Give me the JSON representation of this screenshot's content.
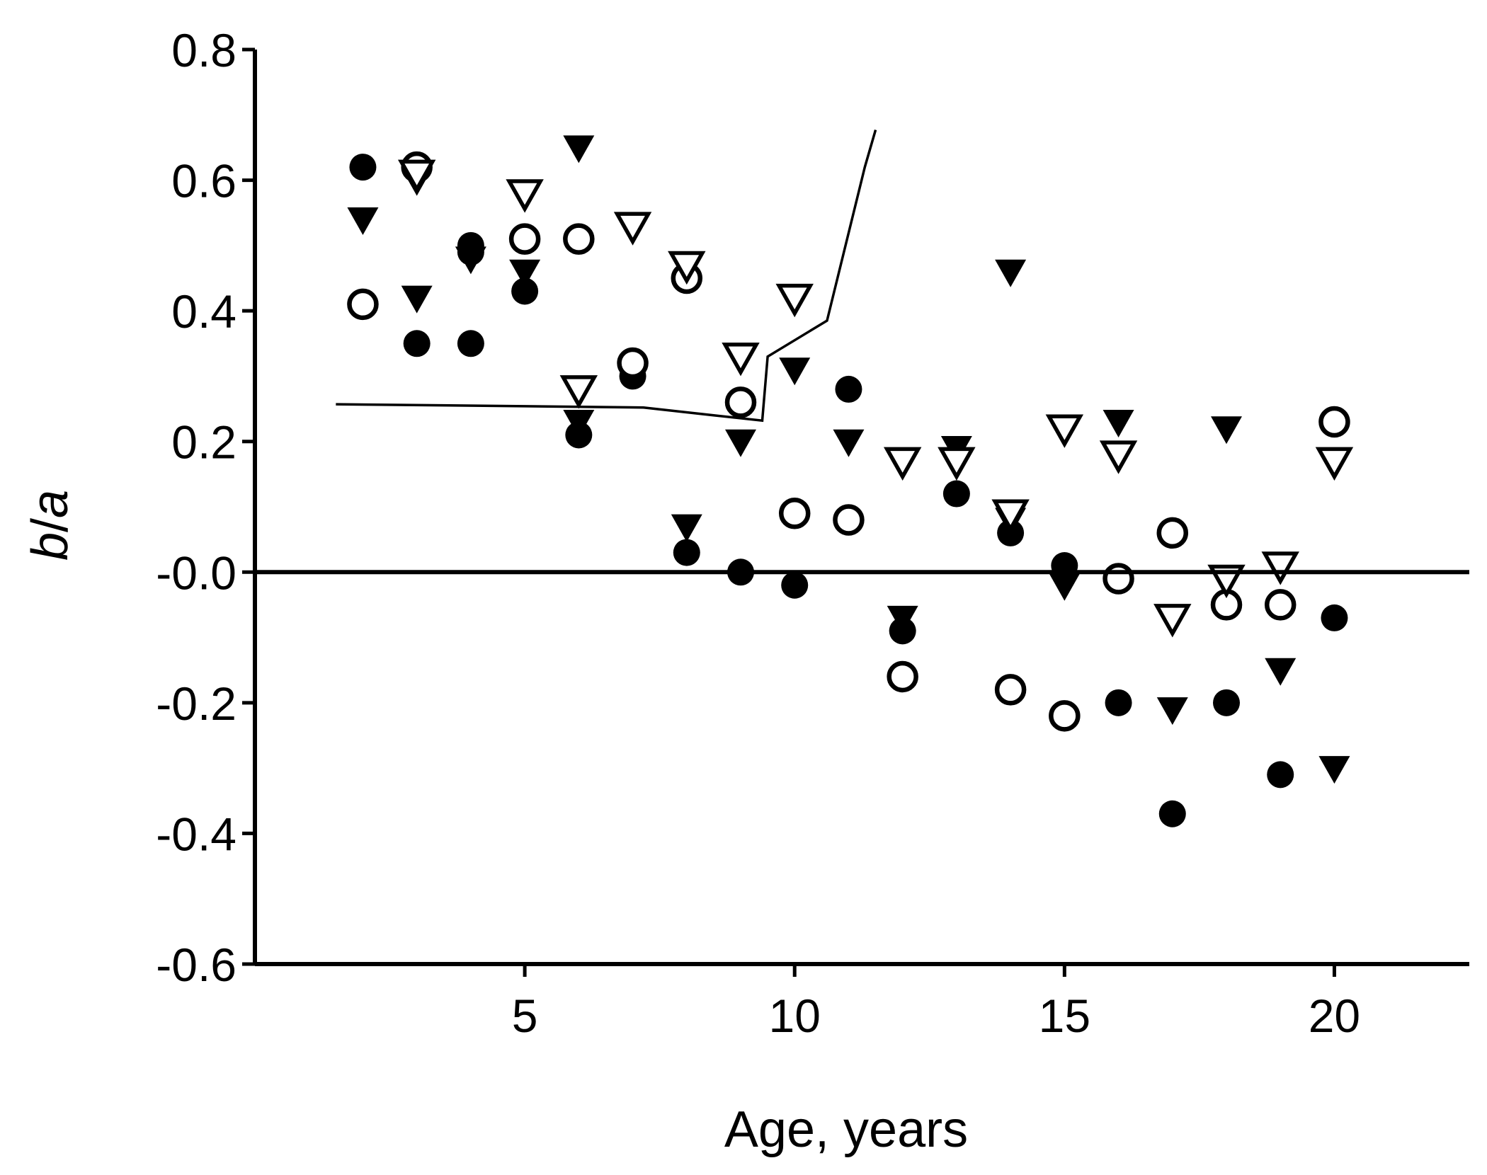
{
  "chart_data": {
    "type": "scatter",
    "title": "",
    "xlabel": "Age, years",
    "ylabel": {
      "italic_b": "b",
      "slash": "/",
      "italic_a": "a"
    },
    "xlim": [
      0,
      22.5
    ],
    "ylim": [
      -0.6,
      0.8
    ],
    "xticks": [
      5,
      10,
      15,
      20
    ],
    "xtick_labels": [
      "5",
      "10",
      "15",
      "20"
    ],
    "yticks": [
      0.8,
      0.6,
      0.4,
      0.2,
      0.0,
      -0.2,
      -0.4,
      -0.6
    ],
    "ytick_labels": [
      "0.8",
      "0.6",
      "0.4",
      "0.2",
      "-0.0",
      "-0.2",
      "-0.4",
      "-0.6"
    ],
    "reference_line_y": 0.0,
    "series": [
      {
        "name": "filled-circles",
        "marker": "circle-filled",
        "points": [
          [
            2,
            0.62
          ],
          [
            3,
            0.62
          ],
          [
            3,
            0.35
          ],
          [
            4,
            0.35
          ],
          [
            4,
            0.49
          ],
          [
            4,
            0.5
          ],
          [
            5,
            0.43
          ],
          [
            6,
            0.21
          ],
          [
            7,
            0.3
          ],
          [
            8,
            0.03
          ],
          [
            9,
            0.0
          ],
          [
            10,
            -0.02
          ],
          [
            11,
            0.28
          ],
          [
            12,
            -0.09
          ],
          [
            13,
            0.12
          ],
          [
            14,
            0.06
          ],
          [
            15,
            0.01
          ],
          [
            16,
            -0.2
          ],
          [
            17,
            -0.37
          ],
          [
            18,
            -0.2
          ],
          [
            19,
            -0.31
          ],
          [
            20,
            -0.07
          ]
        ]
      },
      {
        "name": "open-circles",
        "marker": "circle-open",
        "points": [
          [
            2,
            0.41
          ],
          [
            3,
            0.62
          ],
          [
            5,
            0.51
          ],
          [
            6,
            0.51
          ],
          [
            7,
            0.32
          ],
          [
            8,
            0.45
          ],
          [
            9,
            0.26
          ],
          [
            10,
            0.09
          ],
          [
            11,
            0.08
          ],
          [
            12,
            -0.16
          ],
          [
            14,
            -0.18
          ],
          [
            15,
            -0.22
          ],
          [
            16,
            -0.01
          ],
          [
            17,
            0.06
          ],
          [
            18,
            -0.05
          ],
          [
            19,
            -0.05
          ],
          [
            20,
            0.23
          ]
        ]
      },
      {
        "name": "filled-triangles",
        "marker": "triangle-down-filled",
        "points": [
          [
            2,
            0.54
          ],
          [
            3,
            0.6
          ],
          [
            3,
            0.42
          ],
          [
            4,
            0.48
          ],
          [
            5,
            0.46
          ],
          [
            6,
            0.65
          ],
          [
            6,
            0.23
          ],
          [
            8,
            0.07
          ],
          [
            9,
            0.2
          ],
          [
            10,
            0.31
          ],
          [
            11,
            0.2
          ],
          [
            12,
            -0.07
          ],
          [
            13,
            0.19
          ],
          [
            14,
            0.46
          ],
          [
            14,
            0.08
          ],
          [
            15,
            -0.02
          ],
          [
            16,
            0.23
          ],
          [
            17,
            -0.21
          ],
          [
            18,
            0.22
          ],
          [
            19,
            -0.15
          ],
          [
            20,
            -0.3
          ]
        ]
      },
      {
        "name": "open-triangles",
        "marker": "triangle-down-open",
        "points": [
          [
            3,
            0.61
          ],
          [
            5,
            0.58
          ],
          [
            6,
            0.28
          ],
          [
            7,
            0.53
          ],
          [
            8,
            0.47
          ],
          [
            9,
            0.33
          ],
          [
            10,
            0.42
          ],
          [
            12,
            0.17
          ],
          [
            13,
            0.17
          ],
          [
            14,
            0.09
          ],
          [
            15,
            0.22
          ],
          [
            16,
            0.18
          ],
          [
            17,
            -0.07
          ],
          [
            18,
            -0.01
          ],
          [
            19,
            0.01
          ],
          [
            20,
            0.17
          ]
        ]
      }
    ],
    "line": {
      "name": "reference-curve",
      "points": [
        [
          1.5,
          0.257
        ],
        [
          5,
          0.254
        ],
        [
          7.2,
          0.252
        ],
        [
          8.5,
          0.24
        ],
        [
          9.4,
          0.232
        ],
        [
          9.5,
          0.33
        ],
        [
          10.6,
          0.385
        ],
        [
          11.3,
          0.62
        ],
        [
          11.5,
          0.677
        ]
      ]
    }
  }
}
